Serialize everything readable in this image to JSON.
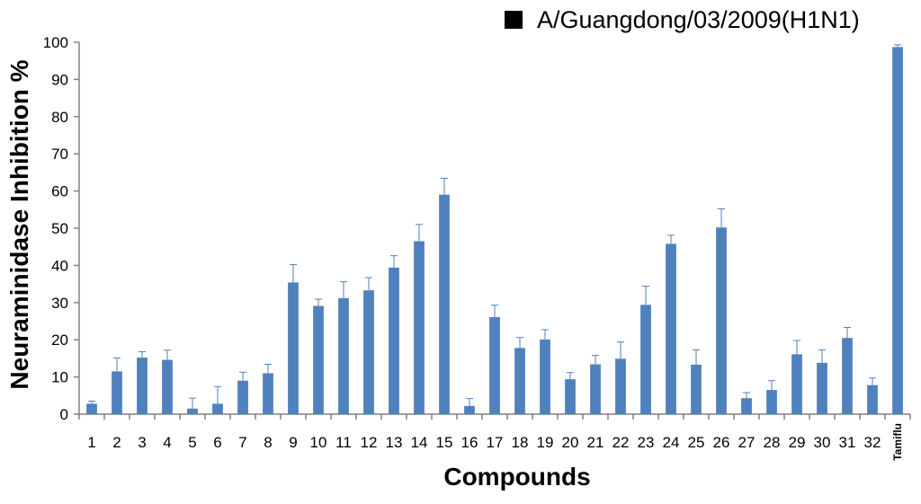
{
  "chart_data": {
    "type": "bar",
    "legend": {
      "label": "A/Guangdong/03/2009(H1N1)",
      "placement": "top-right"
    },
    "ylabel": "Neuraminidase Inhibition %",
    "xlabel": "Compounds",
    "ylim": [
      0,
      100
    ],
    "yticks": [
      "0",
      "10",
      "20",
      "30",
      "40",
      "50",
      "60",
      "70",
      "80",
      "90",
      "100"
    ],
    "grid": false,
    "bar_color": "#4F81BD",
    "error_color": "#4F81BD",
    "categories": [
      "1",
      "2",
      "3",
      "4",
      "5",
      "6",
      "7",
      "8",
      "9",
      "10",
      "11",
      "12",
      "13",
      "14",
      "15",
      "16",
      "17",
      "18",
      "19",
      "20",
      "21",
      "22",
      "23",
      "24",
      "25",
      "26",
      "27",
      "28",
      "29",
      "30",
      "31",
      "32",
      "Tamiflu"
    ],
    "series": [
      {
        "name": "A/Guangdong/03/2009(H1N1)",
        "values": [
          2.8,
          11.5,
          15.2,
          14.6,
          1.5,
          2.8,
          9.0,
          11.0,
          35.4,
          29.1,
          31.2,
          33.3,
          39.4,
          46.5,
          59.0,
          2.2,
          26.1,
          17.8,
          20.1,
          9.4,
          13.4,
          14.9,
          29.4,
          45.8,
          13.3,
          50.2,
          4.3,
          6.5,
          16.1,
          13.8,
          20.5,
          7.8,
          98.7
        ],
        "errors": [
          0.7,
          3.6,
          1.6,
          2.6,
          2.8,
          4.6,
          2.3,
          2.4,
          4.8,
          1.8,
          4.4,
          3.4,
          3.2,
          4.5,
          4.4,
          2.0,
          3.2,
          2.8,
          2.6,
          1.8,
          2.4,
          4.5,
          5.0,
          2.3,
          4.0,
          5.0,
          1.5,
          2.5,
          3.7,
          3.5,
          2.8,
          1.9,
          0.6
        ]
      }
    ]
  }
}
